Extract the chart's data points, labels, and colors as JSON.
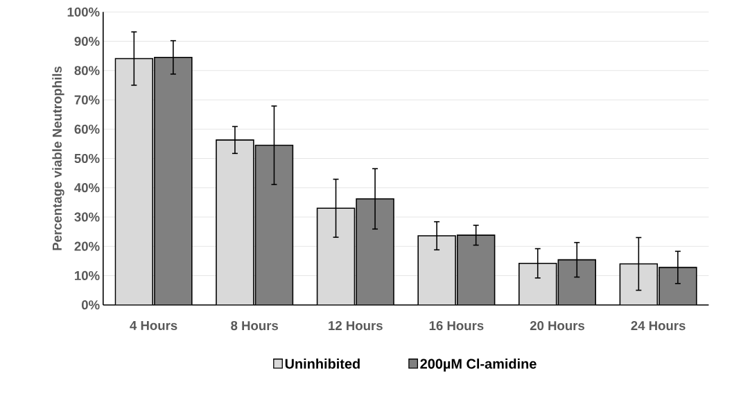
{
  "chart_data": {
    "type": "bar",
    "ylabel": "Percentage viable Neutrophils",
    "categories": [
      "4 Hours",
      "8 Hours",
      "12 Hours",
      "16 Hours",
      "20 Hours",
      "24 Hours"
    ],
    "series": [
      {
        "name": "Uninhibited",
        "color": "#d9d9d9",
        "values": [
          84.1,
          56.3,
          33.0,
          23.6,
          14.2,
          14.0
        ],
        "errors": [
          9.1,
          4.6,
          9.9,
          4.8,
          5.0,
          9.0
        ]
      },
      {
        "name": "200µM Cl-amidine",
        "color": "#808080",
        "values": [
          84.5,
          54.5,
          36.2,
          23.8,
          15.4,
          12.8
        ],
        "errors": [
          5.7,
          13.4,
          10.3,
          3.4,
          5.9,
          5.5
        ]
      }
    ],
    "ylim": [
      0,
      100
    ],
    "yticks": [
      {
        "value": 0,
        "label": "0%"
      },
      {
        "value": 10,
        "label": "10%"
      },
      {
        "value": 20,
        "label": "20%"
      },
      {
        "value": 30,
        "label": "30%"
      },
      {
        "value": 40,
        "label": "40%"
      },
      {
        "value": 50,
        "label": "50%"
      },
      {
        "value": 60,
        "label": "60%"
      },
      {
        "value": 70,
        "label": "70%"
      },
      {
        "value": 80,
        "label": "80%"
      },
      {
        "value": 90,
        "label": "90%"
      },
      {
        "value": 100,
        "label": "100%"
      }
    ],
    "grid": "y",
    "legend": "bottom"
  }
}
